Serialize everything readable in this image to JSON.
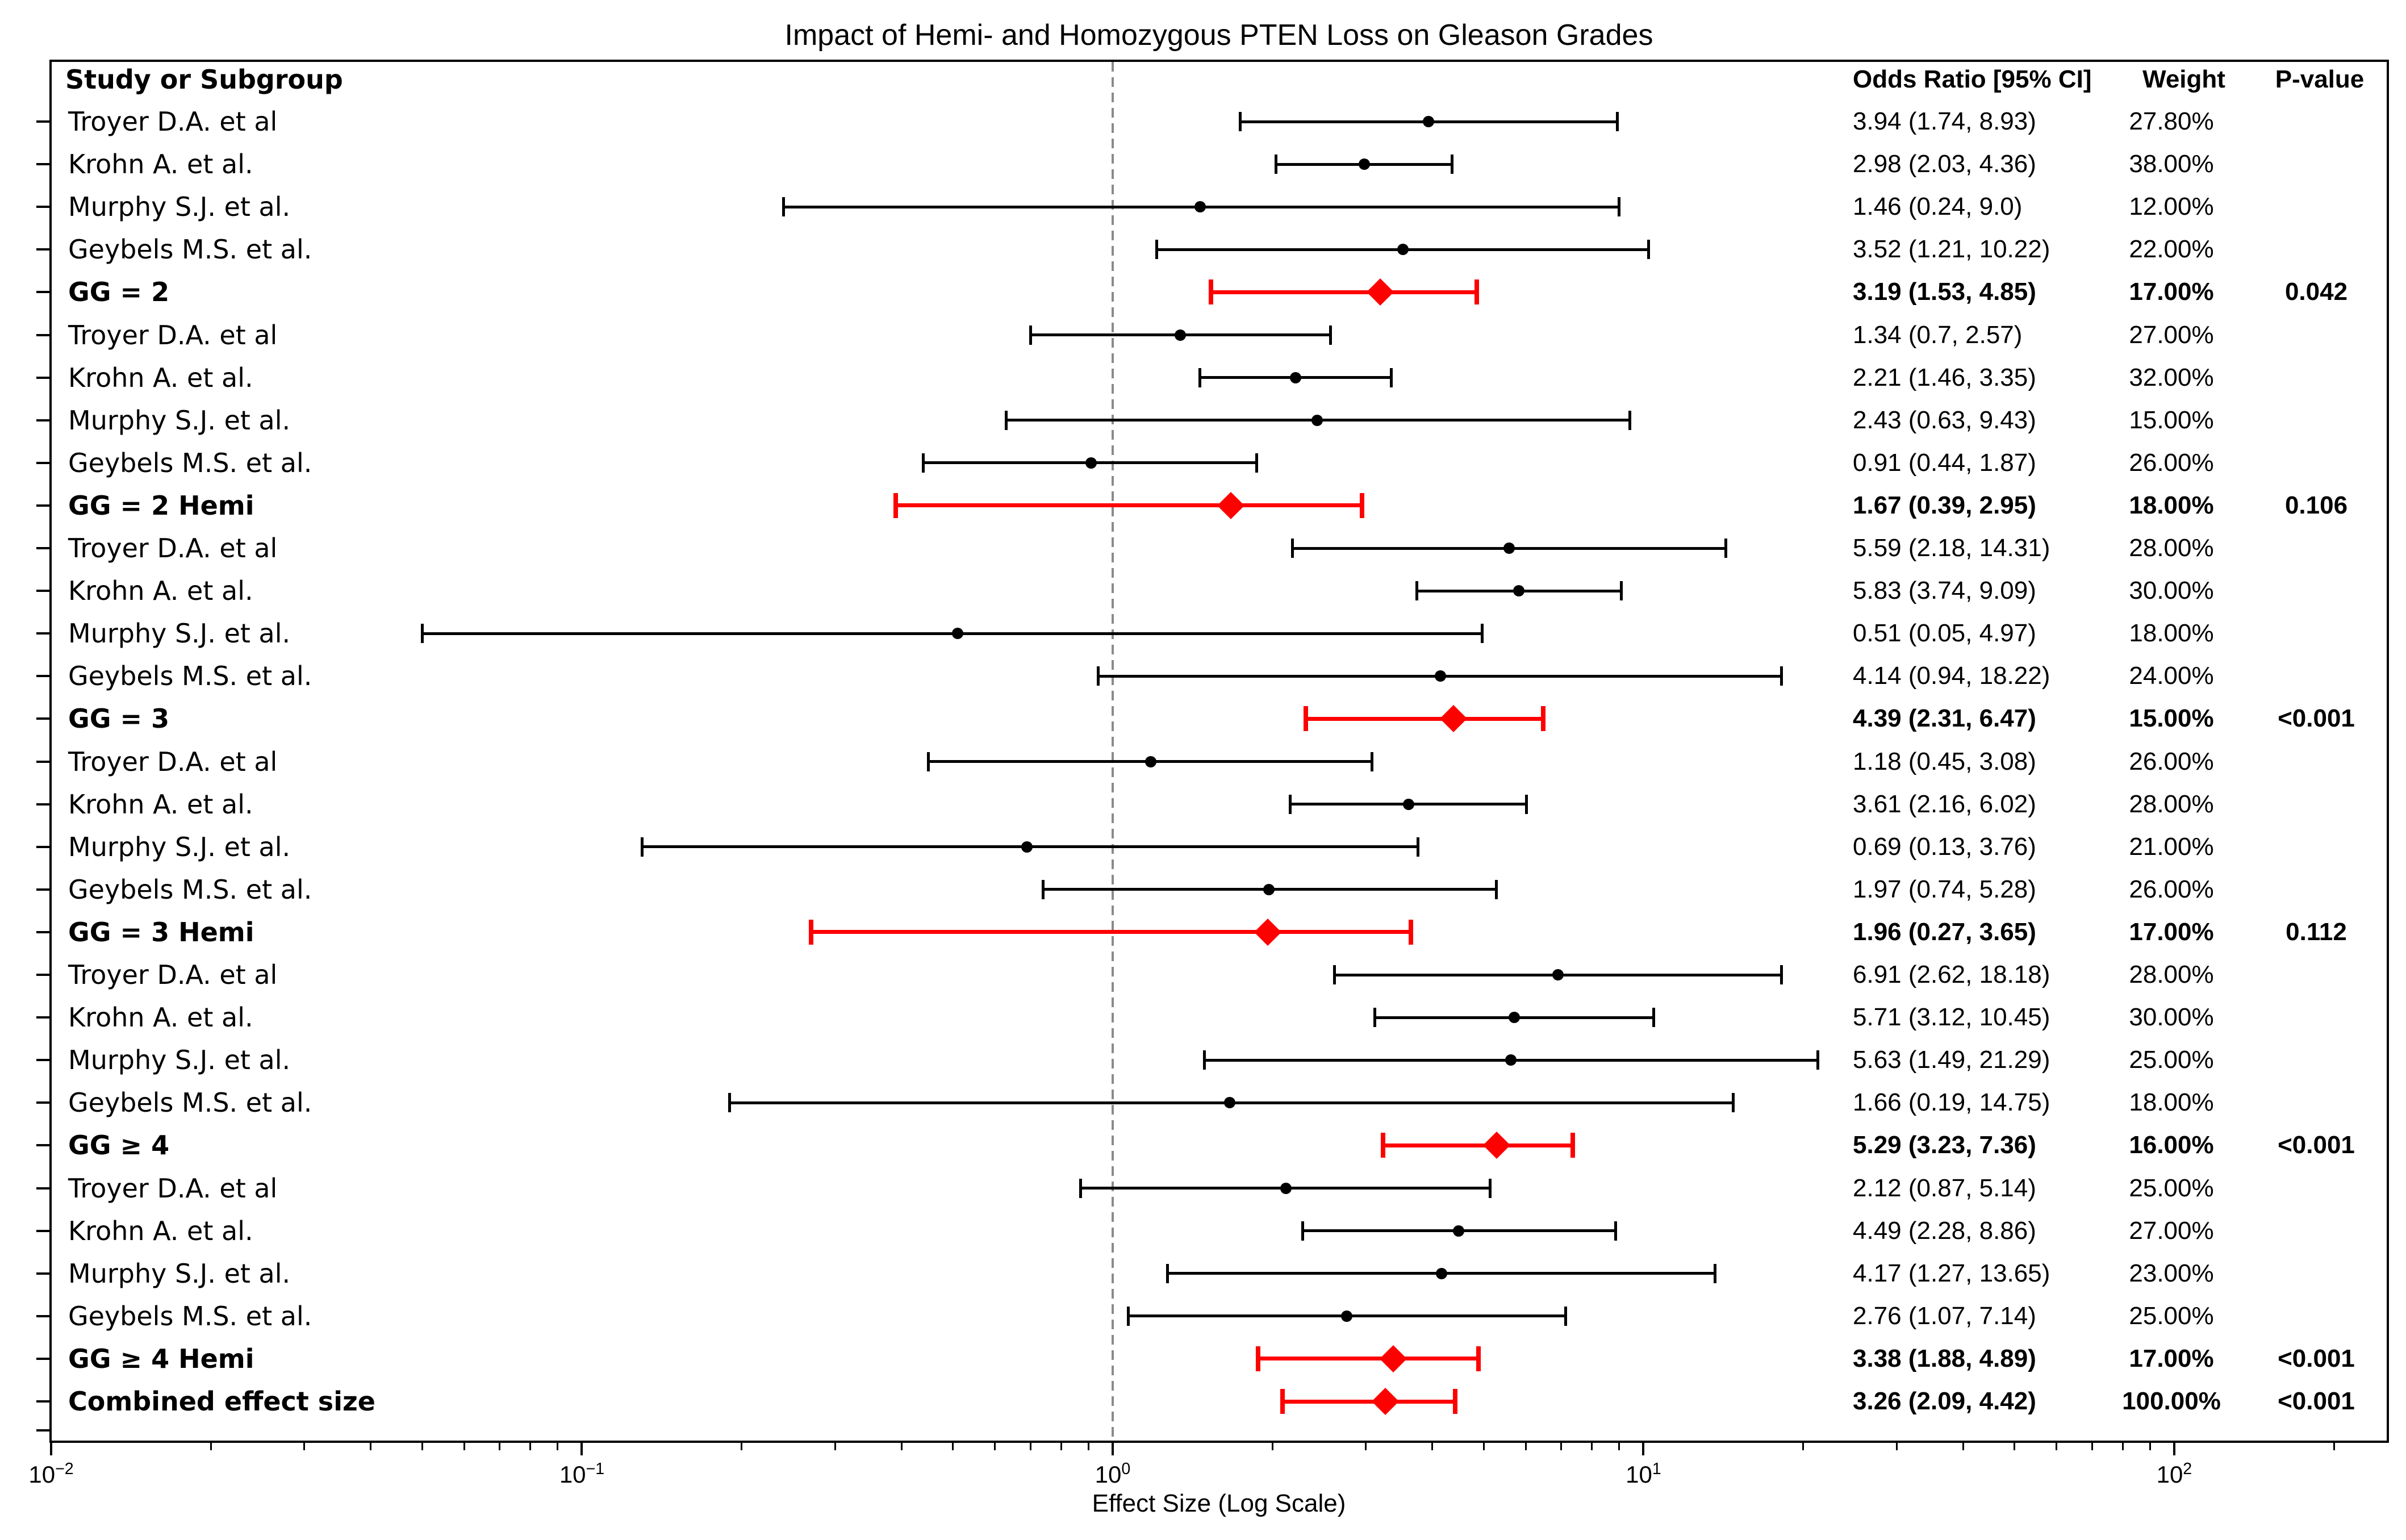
{
  "title": "Impact of Hemi- and Homozygous PTEN Loss on Gleason Grades",
  "columns": {
    "study": "Study or Subgroup",
    "or": "Odds Ratio [95% CI]",
    "weight": "Weight",
    "pvalue": "P-value"
  },
  "colors": {
    "study_marker": "#000000",
    "summary_marker": "#ff0000",
    "reference_line": "#8a8a8a",
    "frame": "#000000"
  },
  "chart_data": {
    "type": "forest",
    "title": "Impact of Hemi- and Homozygous PTEN Loss on Gleason Grades",
    "xlabel": "Effect Size (Log Scale)",
    "x_scale": "log",
    "xlim": [
      0.01,
      252
    ],
    "reference_value": 1,
    "axis": {
      "label": "Effect Size (Log Scale)",
      "major_ticks": [
        {
          "value": 0.01,
          "base": "10",
          "exp": "−2"
        },
        {
          "value": 0.1,
          "base": "10",
          "exp": "−1"
        },
        {
          "value": 1,
          "base": "10",
          "exp": "0"
        },
        {
          "value": 10,
          "base": "10",
          "exp": "1"
        },
        {
          "value": 100,
          "base": "10",
          "exp": "2"
        }
      ]
    },
    "rows": [
      {
        "label": "Troyer D.A. et al",
        "kind": "study",
        "or": 3.94,
        "lo": 1.74,
        "hi": 8.93,
        "or_text": "3.94 (1.74, 8.93)",
        "weight": "27.80%",
        "pvalue": ""
      },
      {
        "label": "Krohn A. et al.",
        "kind": "study",
        "or": 2.98,
        "lo": 2.03,
        "hi": 4.36,
        "or_text": "2.98 (2.03, 4.36)",
        "weight": "38.00%",
        "pvalue": ""
      },
      {
        "label": "Murphy S.J. et al.",
        "kind": "study",
        "or": 1.46,
        "lo": 0.24,
        "hi": 9.0,
        "or_text": "1.46 (0.24, 9.0)",
        "weight": "12.00%",
        "pvalue": ""
      },
      {
        "label": "Geybels M.S. et al.",
        "kind": "study",
        "or": 3.52,
        "lo": 1.21,
        "hi": 10.22,
        "or_text": "3.52 (1.21, 10.22)",
        "weight": "22.00%",
        "pvalue": ""
      },
      {
        "label": "GG = 2",
        "kind": "summary",
        "or": 3.19,
        "lo": 1.53,
        "hi": 4.85,
        "or_text": "3.19 (1.53, 4.85)",
        "weight": "17.00%",
        "pvalue": "0.042"
      },
      {
        "label": "Troyer D.A. et al",
        "kind": "study",
        "or": 1.34,
        "lo": 0.7,
        "hi": 2.57,
        "or_text": "1.34 (0.7, 2.57)",
        "weight": "27.00%",
        "pvalue": ""
      },
      {
        "label": "Krohn A. et al.",
        "kind": "study",
        "or": 2.21,
        "lo": 1.46,
        "hi": 3.35,
        "or_text": "2.21 (1.46, 3.35)",
        "weight": "32.00%",
        "pvalue": ""
      },
      {
        "label": "Murphy S.J. et al.",
        "kind": "study",
        "or": 2.43,
        "lo": 0.63,
        "hi": 9.43,
        "or_text": "2.43 (0.63, 9.43)",
        "weight": "15.00%",
        "pvalue": ""
      },
      {
        "label": "Geybels M.S. et al.",
        "kind": "study",
        "or": 0.91,
        "lo": 0.44,
        "hi": 1.87,
        "or_text": "0.91 (0.44, 1.87)",
        "weight": "26.00%",
        "pvalue": ""
      },
      {
        "label": "GG = 2 Hemi",
        "kind": "summary",
        "or": 1.67,
        "lo": 0.39,
        "hi": 2.95,
        "or_text": "1.67 (0.39, 2.95)",
        "weight": "18.00%",
        "pvalue": "0.106"
      },
      {
        "label": "Troyer D.A. et al",
        "kind": "study",
        "or": 5.59,
        "lo": 2.18,
        "hi": 14.31,
        "or_text": "5.59 (2.18, 14.31)",
        "weight": "28.00%",
        "pvalue": ""
      },
      {
        "label": "Krohn A. et al.",
        "kind": "study",
        "or": 5.83,
        "lo": 3.74,
        "hi": 9.09,
        "or_text": "5.83 (3.74, 9.09)",
        "weight": "30.00%",
        "pvalue": ""
      },
      {
        "label": "Murphy S.J. et al.",
        "kind": "study",
        "or": 0.51,
        "lo": 0.05,
        "hi": 4.97,
        "or_text": "0.51 (0.05, 4.97)",
        "weight": "18.00%",
        "pvalue": ""
      },
      {
        "label": "Geybels M.S. et al.",
        "kind": "study",
        "or": 4.14,
        "lo": 0.94,
        "hi": 18.22,
        "or_text": "4.14 (0.94, 18.22)",
        "weight": "24.00%",
        "pvalue": ""
      },
      {
        "label": "GG = 3",
        "kind": "summary",
        "or": 4.39,
        "lo": 2.31,
        "hi": 6.47,
        "or_text": "4.39 (2.31, 6.47)",
        "weight": "15.00%",
        "pvalue": "<0.001"
      },
      {
        "label": "Troyer D.A. et al",
        "kind": "study",
        "or": 1.18,
        "lo": 0.45,
        "hi": 3.08,
        "or_text": "1.18 (0.45, 3.08)",
        "weight": "26.00%",
        "pvalue": ""
      },
      {
        "label": "Krohn A. et al.",
        "kind": "study",
        "or": 3.61,
        "lo": 2.16,
        "hi": 6.02,
        "or_text": "3.61 (2.16, 6.02)",
        "weight": "28.00%",
        "pvalue": ""
      },
      {
        "label": "Murphy S.J. et al.",
        "kind": "study",
        "or": 0.69,
        "lo": 0.13,
        "hi": 3.76,
        "or_text": "0.69 (0.13, 3.76)",
        "weight": "21.00%",
        "pvalue": ""
      },
      {
        "label": "Geybels M.S. et al.",
        "kind": "study",
        "or": 1.97,
        "lo": 0.74,
        "hi": 5.28,
        "or_text": "1.97 (0.74, 5.28)",
        "weight": "26.00%",
        "pvalue": ""
      },
      {
        "label": "GG = 3 Hemi",
        "kind": "summary",
        "or": 1.96,
        "lo": 0.27,
        "hi": 3.65,
        "or_text": "1.96 (0.27, 3.65)",
        "weight": "17.00%",
        "pvalue": "0.112"
      },
      {
        "label": "Troyer D.A. et al",
        "kind": "study",
        "or": 6.91,
        "lo": 2.62,
        "hi": 18.18,
        "or_text": "6.91 (2.62, 18.18)",
        "weight": "28.00%",
        "pvalue": ""
      },
      {
        "label": "Krohn A. et al.",
        "kind": "study",
        "or": 5.71,
        "lo": 3.12,
        "hi": 10.45,
        "or_text": "5.71 (3.12, 10.45)",
        "weight": "30.00%",
        "pvalue": ""
      },
      {
        "label": "Murphy S.J. et al.",
        "kind": "study",
        "or": 5.63,
        "lo": 1.49,
        "hi": 21.29,
        "or_text": "5.63 (1.49, 21.29)",
        "weight": "25.00%",
        "pvalue": ""
      },
      {
        "label": "Geybels M.S. et al.",
        "kind": "study",
        "or": 1.66,
        "lo": 0.19,
        "hi": 14.75,
        "or_text": "1.66 (0.19, 14.75)",
        "weight": "18.00%",
        "pvalue": ""
      },
      {
        "label": "GG ≥ 4",
        "kind": "summary",
        "or": 5.29,
        "lo": 3.23,
        "hi": 7.36,
        "or_text": "5.29 (3.23, 7.36)",
        "weight": "16.00%",
        "pvalue": "<0.001"
      },
      {
        "label": "Troyer D.A. et al",
        "kind": "study",
        "or": 2.12,
        "lo": 0.87,
        "hi": 5.14,
        "or_text": "2.12 (0.87, 5.14)",
        "weight": "25.00%",
        "pvalue": ""
      },
      {
        "label": "Krohn A. et al.",
        "kind": "study",
        "or": 4.49,
        "lo": 2.28,
        "hi": 8.86,
        "or_text": "4.49 (2.28, 8.86)",
        "weight": "27.00%",
        "pvalue": ""
      },
      {
        "label": "Murphy S.J. et al.",
        "kind": "study",
        "or": 4.17,
        "lo": 1.27,
        "hi": 13.65,
        "or_text": "4.17 (1.27, 13.65)",
        "weight": "23.00%",
        "pvalue": ""
      },
      {
        "label": "Geybels M.S. et al.",
        "kind": "study",
        "or": 2.76,
        "lo": 1.07,
        "hi": 7.14,
        "or_text": "2.76 (1.07, 7.14)",
        "weight": "25.00%",
        "pvalue": ""
      },
      {
        "label": "GG ≥ 4 Hemi",
        "kind": "summary",
        "or": 3.38,
        "lo": 1.88,
        "hi": 4.89,
        "or_text": "3.38 (1.88, 4.89)",
        "weight": "17.00%",
        "pvalue": "<0.001"
      },
      {
        "label": "Combined effect size",
        "kind": "combined",
        "or": 3.26,
        "lo": 2.09,
        "hi": 4.42,
        "or_text": "3.26 (2.09, 4.42)",
        "weight": "100.00%",
        "pvalue": "<0.001"
      }
    ]
  }
}
